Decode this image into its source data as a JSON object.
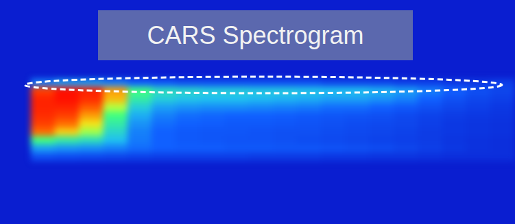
{
  "chart_data": {
    "type": "heatmap",
    "title": "CARS Spectrogram",
    "tick_labels": false,
    "clim": [
      0,
      1
    ],
    "cells": [
      [
        0.25,
        0.3,
        0.3,
        0.25,
        0.2,
        0.18,
        0.15,
        0.15,
        0.15,
        0.15,
        0.15,
        0.15,
        0.12,
        0.12,
        0.12,
        0.1,
        0.1,
        0.08,
        0.08,
        0.1
      ],
      [
        0.85,
        0.9,
        0.88,
        0.75,
        0.5,
        0.42,
        0.4,
        0.38,
        0.38,
        0.37,
        0.37,
        0.36,
        0.35,
        0.35,
        0.33,
        0.3,
        0.25,
        0.2,
        0.15,
        0.12
      ],
      [
        0.88,
        0.9,
        0.87,
        0.72,
        0.45,
        0.38,
        0.36,
        0.35,
        0.35,
        0.34,
        0.33,
        0.32,
        0.3,
        0.3,
        0.28,
        0.25,
        0.2,
        0.15,
        0.12,
        0.1
      ],
      [
        0.88,
        0.88,
        0.82,
        0.6,
        0.38,
        0.3,
        0.28,
        0.27,
        0.27,
        0.26,
        0.25,
        0.24,
        0.22,
        0.22,
        0.2,
        0.18,
        0.15,
        0.12,
        0.1,
        0.08
      ],
      [
        0.87,
        0.85,
        0.75,
        0.5,
        0.32,
        0.25,
        0.22,
        0.21,
        0.2,
        0.2,
        0.19,
        0.18,
        0.17,
        0.16,
        0.15,
        0.13,
        0.11,
        0.09,
        0.08,
        0.07
      ],
      [
        0.85,
        0.8,
        0.68,
        0.45,
        0.28,
        0.22,
        0.2,
        0.19,
        0.18,
        0.18,
        0.17,
        0.16,
        0.15,
        0.14,
        0.13,
        0.12,
        0.1,
        0.08,
        0.07,
        0.06
      ],
      [
        0.8,
        0.7,
        0.58,
        0.4,
        0.25,
        0.2,
        0.18,
        0.17,
        0.17,
        0.16,
        0.15,
        0.15,
        0.14,
        0.13,
        0.12,
        0.11,
        0.09,
        0.08,
        0.07,
        0.06
      ],
      [
        0.5,
        0.45,
        0.42,
        0.35,
        0.24,
        0.2,
        0.18,
        0.17,
        0.16,
        0.16,
        0.15,
        0.14,
        0.13,
        0.12,
        0.11,
        0.1,
        0.09,
        0.07,
        0.06,
        0.05
      ],
      [
        0.3,
        0.28,
        0.27,
        0.25,
        0.22,
        0.2,
        0.19,
        0.19,
        0.18,
        0.18,
        0.17,
        0.17,
        0.16,
        0.15,
        0.14,
        0.12,
        0.1,
        0.08,
        0.06,
        0.05
      ],
      [
        0.15,
        0.14,
        0.13,
        0.12,
        0.11,
        0.1,
        0.1,
        0.1,
        0.1,
        0.09,
        0.09,
        0.09,
        0.08,
        0.08,
        0.07,
        0.07,
        0.06,
        0.05,
        0.05,
        0.05
      ]
    ]
  }
}
